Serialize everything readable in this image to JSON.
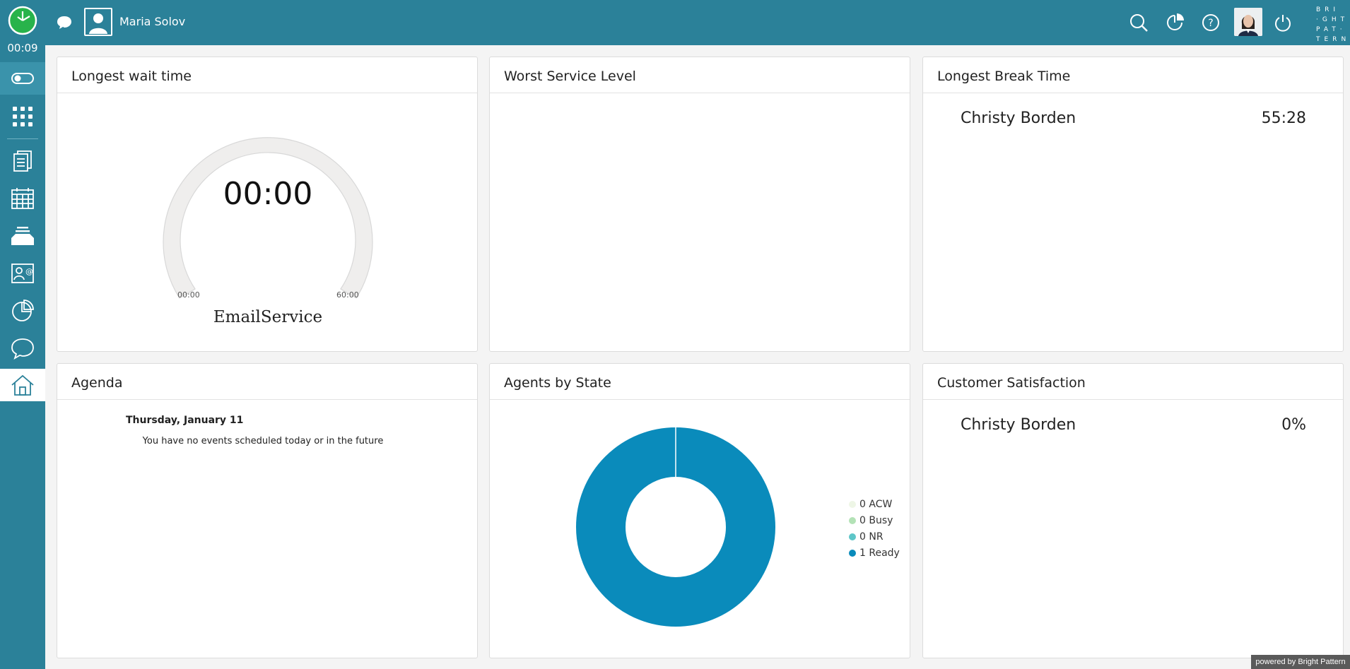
{
  "sidebar": {
    "timer": "00:09",
    "icons": [
      "toggle-icon",
      "dialpad-icon",
      "documents-icon",
      "calendar-icon",
      "inbox-icon",
      "contacts-icon",
      "reports-icon",
      "chat-icon",
      "home-icon"
    ]
  },
  "header": {
    "user_name": "Maria Solov",
    "brand_lines": [
      "BRI",
      "·GHT",
      "PAT·",
      "TERN"
    ]
  },
  "widgets": {
    "longest_wait": {
      "title": "Longest wait time",
      "value": "00:00",
      "min_label": "00:00",
      "max_label": "60:00",
      "service": "EmailService"
    },
    "worst_service": {
      "title": "Worst Service Level"
    },
    "longest_break": {
      "title": "Longest Break Time",
      "agent": "Christy Borden",
      "value": "55:28"
    },
    "agenda": {
      "title": "Agenda",
      "date": "Thursday, January 11",
      "empty_text": "You have no events scheduled today or in the future"
    },
    "agents_by_state": {
      "title": "Agents by State",
      "legend": [
        {
          "label": "0 ACW",
          "color": "#eef6e6"
        },
        {
          "label": "0 Busy",
          "color": "#b3e2b6"
        },
        {
          "label": "0 NR",
          "color": "#5ec6c8"
        },
        {
          "label": "1 Ready",
          "color": "#0a8bbb"
        }
      ]
    },
    "customer_satisfaction": {
      "title": "Customer Satisfaction",
      "agent": "Christy Borden",
      "value": "0%"
    }
  },
  "chart_data": {
    "type": "pie",
    "categories": [
      "ACW",
      "Busy",
      "NR",
      "Ready"
    ],
    "values": [
      0,
      0,
      0,
      1
    ],
    "colors": [
      "#eef6e6",
      "#b3e2b6",
      "#5ec6c8",
      "#0a8bbb"
    ],
    "legend": "right"
  },
  "footer": {
    "powered_by": "powered by Bright Pattern"
  }
}
